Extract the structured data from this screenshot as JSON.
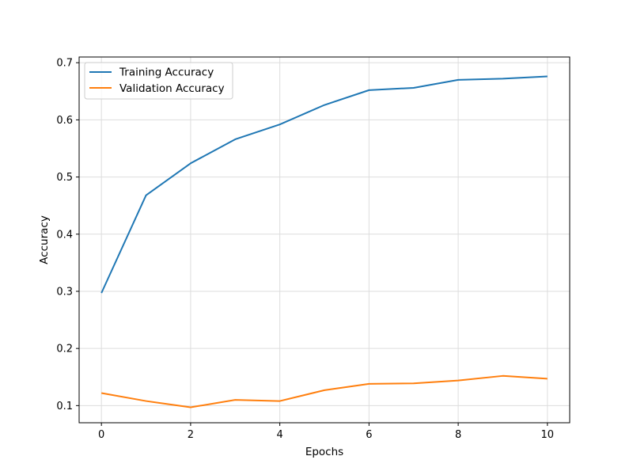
{
  "chart_data": {
    "type": "line",
    "title": "",
    "xlabel": "Epochs",
    "ylabel": "Accuracy",
    "x": [
      0,
      1,
      2,
      3,
      4,
      5,
      6,
      7,
      8,
      9,
      10
    ],
    "xlim": [
      -0.5,
      10.5
    ],
    "ylim": [
      0.07,
      0.71
    ],
    "xticks": [
      0,
      2,
      4,
      6,
      8,
      10
    ],
    "yticks": [
      0.1,
      0.2,
      0.3,
      0.4,
      0.5,
      0.6,
      0.7
    ],
    "grid": true,
    "legend_position": "top-left",
    "series": [
      {
        "name": "Training Accuracy",
        "color": "#1f77b4",
        "values": [
          0.297,
          0.468,
          0.524,
          0.566,
          0.592,
          0.626,
          0.652,
          0.656,
          0.67,
          0.672,
          0.676
        ]
      },
      {
        "name": "Validation Accuracy",
        "color": "#ff7f0e",
        "values": [
          0.122,
          0.108,
          0.097,
          0.11,
          0.108,
          0.127,
          0.138,
          0.139,
          0.144,
          0.152,
          0.147
        ]
      }
    ]
  }
}
